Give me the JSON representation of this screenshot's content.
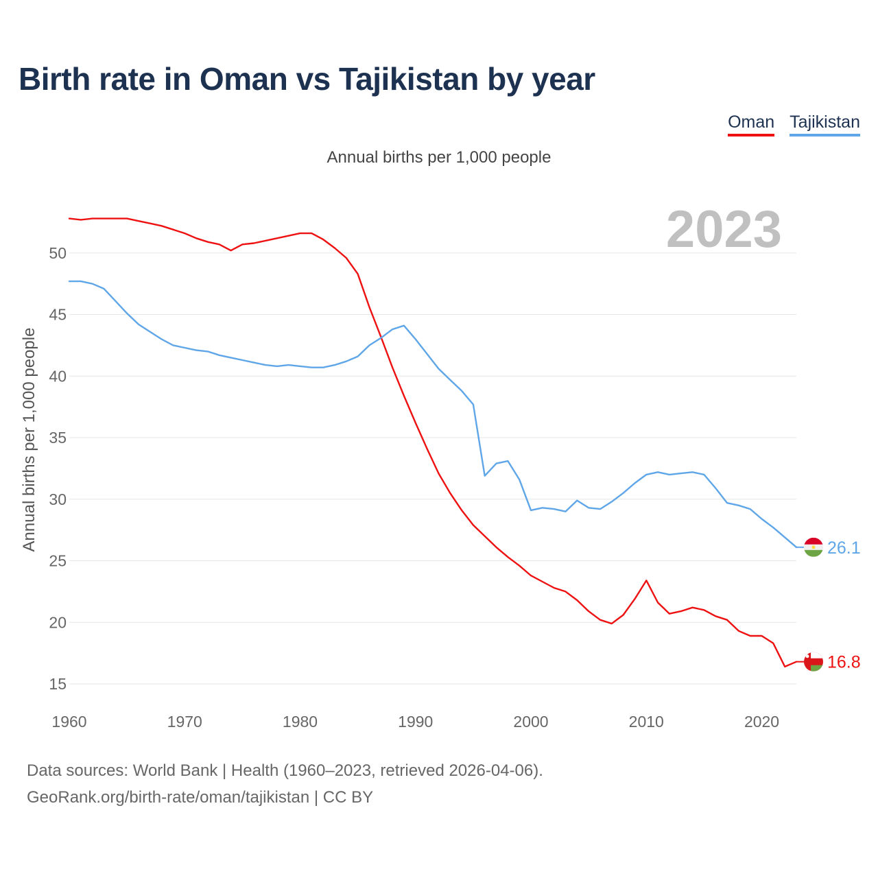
{
  "chart_data": {
    "type": "line",
    "title": "Birth rate in Oman vs Tajikistan by year",
    "subtitle": "Annual births per 1,000 people",
    "ylabel": "Annual births per 1,000 people",
    "xlabel": "",
    "highlight_year": "2023",
    "legend_position": "top-right",
    "xlim": [
      1960,
      2023
    ],
    "ylim": [
      15,
      53.5
    ],
    "x_ticks": [
      1960,
      1970,
      1980,
      1990,
      2000,
      2010,
      2020
    ],
    "y_ticks": [
      15,
      20,
      25,
      30,
      35,
      40,
      45,
      50
    ],
    "grid": true,
    "x": [
      1960,
      1961,
      1962,
      1963,
      1964,
      1965,
      1966,
      1967,
      1968,
      1969,
      1970,
      1971,
      1972,
      1973,
      1974,
      1975,
      1976,
      1977,
      1978,
      1979,
      1980,
      1981,
      1982,
      1983,
      1984,
      1985,
      1986,
      1987,
      1988,
      1989,
      1990,
      1991,
      1992,
      1993,
      1994,
      1995,
      1996,
      1997,
      1998,
      1999,
      2000,
      2001,
      2002,
      2003,
      2004,
      2005,
      2006,
      2007,
      2008,
      2009,
      2010,
      2011,
      2012,
      2013,
      2014,
      2015,
      2016,
      2017,
      2018,
      2019,
      2020,
      2021,
      2022,
      2023
    ],
    "series": [
      {
        "name": "Oman",
        "color": "#ee1111",
        "end_label": "16.8",
        "values": [
          52.8,
          52.7,
          52.8,
          52.8,
          52.8,
          52.8,
          52.6,
          52.4,
          52.2,
          51.9,
          51.6,
          51.2,
          50.9,
          50.7,
          50.2,
          50.7,
          50.8,
          51.0,
          51.2,
          51.4,
          51.6,
          51.6,
          51.1,
          50.4,
          49.6,
          48.3,
          45.6,
          43.2,
          40.7,
          38.4,
          36.2,
          34.1,
          32.1,
          30.5,
          29.1,
          27.9,
          27.0,
          26.1,
          25.3,
          24.6,
          23.8,
          23.3,
          22.8,
          22.5,
          21.8,
          20.9,
          20.2,
          19.9,
          20.6,
          21.9,
          23.4,
          21.6,
          20.7,
          20.9,
          21.2,
          21.0,
          20.5,
          20.2,
          19.3,
          18.9,
          18.9,
          18.3,
          16.4,
          16.8
        ]
      },
      {
        "name": "Tajikistan",
        "color": "#5fa6e8",
        "end_label": "26.1",
        "values": [
          47.7,
          47.7,
          47.5,
          47.1,
          46.1,
          45.1,
          44.2,
          43.6,
          43.0,
          42.5,
          42.3,
          42.1,
          42.0,
          41.7,
          41.5,
          41.3,
          41.1,
          40.9,
          40.8,
          40.9,
          40.8,
          40.7,
          40.7,
          40.9,
          41.2,
          41.6,
          42.5,
          43.1,
          43.8,
          44.1,
          43.0,
          41.8,
          40.6,
          39.7,
          38.8,
          37.7,
          31.9,
          32.9,
          33.1,
          31.6,
          29.1,
          29.3,
          29.2,
          29.0,
          29.9,
          29.3,
          29.2,
          29.8,
          30.5,
          31.3,
          32.0,
          32.2,
          32.0,
          32.1,
          32.2,
          32.0,
          30.9,
          29.7,
          29.5,
          29.2,
          28.4,
          27.7,
          26.9,
          26.1
        ]
      }
    ]
  },
  "footer": {
    "line1": "Data sources: World Bank | Health (1960–2023, retrieved 2026-04-06).",
    "line2": "GeoRank.org/birth-rate/oman/tajikistan | CC BY"
  }
}
